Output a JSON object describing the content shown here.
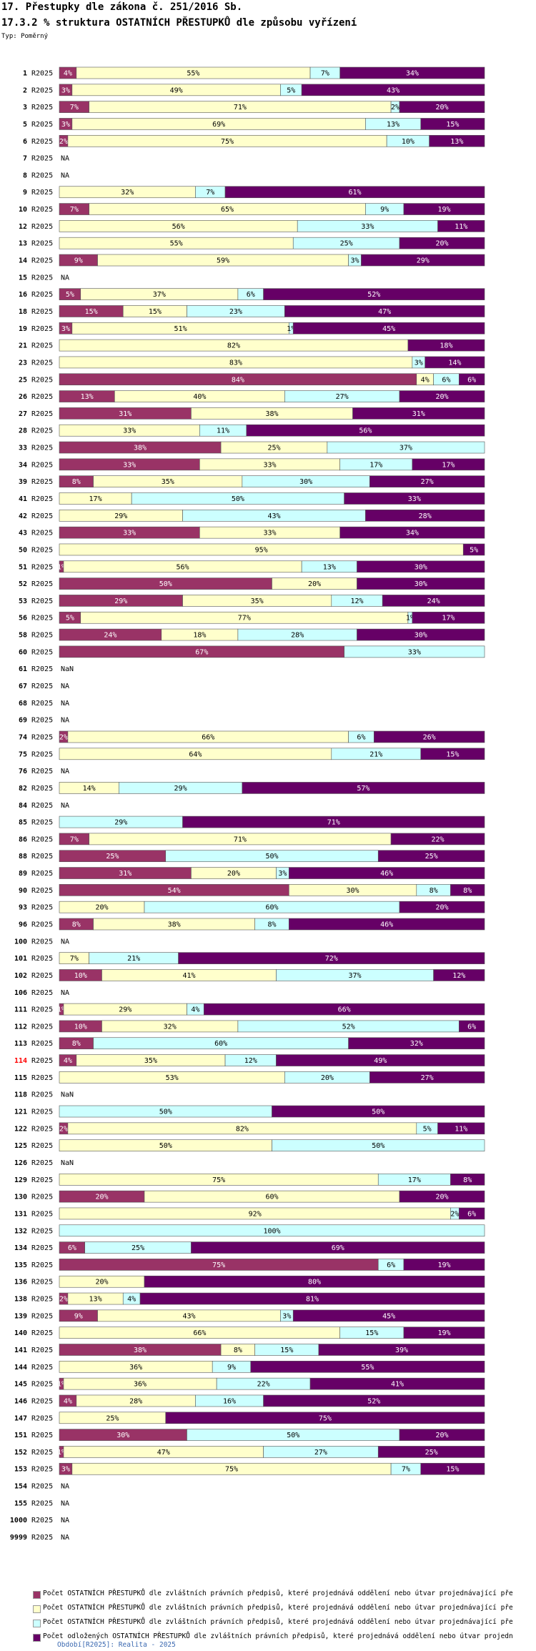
{
  "header": {
    "title": "17. Přestupky dle zákona č. 251/2016 Sb.",
    "subtitle": "17.3.2 % struktura OSTATNÍCH PŘESTUPKŮ dle způsobu vyřízení",
    "type_label": "Typ: Poměrný"
  },
  "footer": {
    "text": "Období[R2025]: Realita - 2025"
  },
  "colors": {
    "s1": "#993366",
    "s2": "#ffffcc",
    "s3": "#ccffff",
    "s4": "#660066",
    "highlight": "#ff0000",
    "footer": "#3a68b0"
  },
  "chart_data": {
    "type": "bar",
    "orientation": "horizontal-stacked-100",
    "period_label": "R2025",
    "highlight_row": "114",
    "series": [
      {
        "name": "Počet OSTATNÍCH PŘESTUPKŮ dle zvláštních právních předpisů, které projednává oddělení nebo útvar projednávající pře",
        "color_key": "s1"
      },
      {
        "name": "Počet OSTATNÍCH PŘESTUPKŮ dle zvláštních právních předpisů, které projednává oddělení nebo útvar projednávající pře",
        "color_key": "s2"
      },
      {
        "name": "Počet OSTATNÍCH PŘESTUPKŮ dle zvláštních právních předpisů, které projednává oddělení nebo útvar projednávající pře",
        "color_key": "s3"
      },
      {
        "name": "Počet odložených OSTATNÍCH PŘESTUPKŮ dle zvláštních právních předpisů, které projednává oddělení nebo útvar projedn",
        "color_key": "s4"
      }
    ],
    "rows": [
      {
        "id": "1",
        "v": [
          4,
          55,
          7,
          34
        ]
      },
      {
        "id": "2",
        "v": [
          3,
          49,
          5,
          43
        ]
      },
      {
        "id": "3",
        "v": [
          7,
          71,
          2,
          20
        ]
      },
      {
        "id": "5",
        "v": [
          3,
          69,
          13,
          15
        ]
      },
      {
        "id": "6",
        "v": [
          2,
          75,
          10,
          13
        ]
      },
      {
        "id": "7",
        "na": "NA"
      },
      {
        "id": "8",
        "na": "NA"
      },
      {
        "id": "9",
        "v": [
          0,
          32,
          7,
          61
        ]
      },
      {
        "id": "10",
        "v": [
          7,
          65,
          9,
          19
        ]
      },
      {
        "id": "12",
        "v": [
          0,
          56,
          33,
          11
        ]
      },
      {
        "id": "13",
        "v": [
          0,
          55,
          25,
          20
        ]
      },
      {
        "id": "14",
        "v": [
          9,
          59,
          3,
          29
        ]
      },
      {
        "id": "15",
        "na": "NA"
      },
      {
        "id": "16",
        "v": [
          5,
          37,
          6,
          52
        ]
      },
      {
        "id": "18",
        "v": [
          15,
          15,
          23,
          47
        ]
      },
      {
        "id": "19",
        "v": [
          3,
          51,
          1,
          45
        ]
      },
      {
        "id": "21",
        "v": [
          0,
          82,
          0,
          18
        ]
      },
      {
        "id": "23",
        "v": [
          0,
          83,
          3,
          14
        ]
      },
      {
        "id": "25",
        "v": [
          84,
          4,
          6,
          6
        ]
      },
      {
        "id": "26",
        "v": [
          13,
          40,
          27,
          20
        ]
      },
      {
        "id": "27",
        "v": [
          31,
          38,
          0,
          31
        ]
      },
      {
        "id": "28",
        "v": [
          0,
          33,
          11,
          56
        ]
      },
      {
        "id": "33",
        "v": [
          38,
          25,
          37,
          0
        ]
      },
      {
        "id": "34",
        "v": [
          33,
          33,
          17,
          17
        ]
      },
      {
        "id": "39",
        "v": [
          8,
          35,
          30,
          27
        ]
      },
      {
        "id": "41",
        "v": [
          0,
          17,
          50,
          33
        ]
      },
      {
        "id": "42",
        "v": [
          0,
          29,
          43,
          28
        ]
      },
      {
        "id": "43",
        "v": [
          33,
          33,
          0,
          34
        ]
      },
      {
        "id": "50",
        "v": [
          0,
          95,
          0,
          5
        ]
      },
      {
        "id": "51",
        "v": [
          1,
          56,
          13,
          30
        ]
      },
      {
        "id": "52",
        "v": [
          50,
          20,
          0,
          30
        ]
      },
      {
        "id": "53",
        "v": [
          29,
          35,
          12,
          24
        ]
      },
      {
        "id": "56",
        "v": [
          5,
          77,
          1,
          17
        ]
      },
      {
        "id": "58",
        "v": [
          24,
          18,
          28,
          30
        ]
      },
      {
        "id": "60",
        "v": [
          67,
          0,
          33,
          0
        ]
      },
      {
        "id": "61",
        "na": "NaN"
      },
      {
        "id": "67",
        "na": "NA"
      },
      {
        "id": "68",
        "na": "NA"
      },
      {
        "id": "69",
        "na": "NA"
      },
      {
        "id": "74",
        "v": [
          2,
          66,
          6,
          26
        ]
      },
      {
        "id": "75",
        "v": [
          0,
          64,
          21,
          15
        ]
      },
      {
        "id": "76",
        "na": "NA"
      },
      {
        "id": "82",
        "v": [
          0,
          14,
          29,
          57
        ]
      },
      {
        "id": "84",
        "na": "NA"
      },
      {
        "id": "85",
        "v": [
          0,
          0,
          29,
          71
        ]
      },
      {
        "id": "86",
        "v": [
          7,
          71,
          0,
          22
        ]
      },
      {
        "id": "88",
        "v": [
          25,
          0,
          50,
          25
        ]
      },
      {
        "id": "89",
        "v": [
          31,
          20,
          3,
          46
        ]
      },
      {
        "id": "90",
        "v": [
          54,
          30,
          8,
          8
        ]
      },
      {
        "id": "93",
        "v": [
          0,
          20,
          60,
          20
        ]
      },
      {
        "id": "96",
        "v": [
          8,
          38,
          8,
          46
        ]
      },
      {
        "id": "100",
        "na": "NA"
      },
      {
        "id": "101",
        "v": [
          0,
          7,
          21,
          72
        ]
      },
      {
        "id": "102",
        "v": [
          10,
          41,
          37,
          12
        ]
      },
      {
        "id": "106",
        "na": "NA"
      },
      {
        "id": "111",
        "v": [
          1,
          29,
          4,
          66
        ]
      },
      {
        "id": "112",
        "v": [
          10,
          32,
          52,
          6
        ]
      },
      {
        "id": "113",
        "v": [
          8,
          0,
          60,
          32
        ]
      },
      {
        "id": "114",
        "v": [
          4,
          35,
          12,
          49
        ]
      },
      {
        "id": "115",
        "v": [
          0,
          53,
          20,
          27
        ]
      },
      {
        "id": "118",
        "na": "NaN"
      },
      {
        "id": "121",
        "v": [
          0,
          0,
          50,
          50
        ]
      },
      {
        "id": "122",
        "v": [
          2,
          82,
          5,
          11
        ]
      },
      {
        "id": "125",
        "v": [
          0,
          50,
          50,
          0
        ]
      },
      {
        "id": "126",
        "na": "NaN"
      },
      {
        "id": "129",
        "v": [
          0,
          75,
          17,
          8
        ]
      },
      {
        "id": "130",
        "v": [
          20,
          60,
          0,
          20
        ]
      },
      {
        "id": "131",
        "v": [
          0,
          92,
          2,
          6
        ]
      },
      {
        "id": "132",
        "v": [
          0,
          0,
          100,
          0
        ]
      },
      {
        "id": "134",
        "v": [
          6,
          0,
          25,
          69
        ]
      },
      {
        "id": "135",
        "v": [
          75,
          0,
          6,
          19
        ]
      },
      {
        "id": "136",
        "v": [
          0,
          20,
          0,
          80
        ]
      },
      {
        "id": "138",
        "v": [
          2,
          13,
          4,
          81
        ]
      },
      {
        "id": "139",
        "v": [
          9,
          43,
          3,
          45
        ]
      },
      {
        "id": "140",
        "v": [
          0,
          66,
          15,
          19
        ]
      },
      {
        "id": "141",
        "v": [
          38,
          8,
          15,
          39
        ]
      },
      {
        "id": "144",
        "v": [
          0,
          36,
          9,
          55
        ]
      },
      {
        "id": "145",
        "v": [
          1,
          36,
          22,
          41
        ]
      },
      {
        "id": "146",
        "v": [
          4,
          28,
          16,
          52
        ]
      },
      {
        "id": "147",
        "v": [
          0,
          25,
          0,
          75
        ]
      },
      {
        "id": "151",
        "v": [
          30,
          0,
          50,
          20
        ]
      },
      {
        "id": "152",
        "v": [
          1,
          47,
          27,
          25
        ]
      },
      {
        "id": "153",
        "v": [
          3,
          75,
          7,
          15
        ]
      },
      {
        "id": "154",
        "na": "NA"
      },
      {
        "id": "155",
        "na": "NA"
      },
      {
        "id": "1000",
        "na": "NA"
      },
      {
        "id": "9999",
        "na": "NA"
      }
    ]
  }
}
